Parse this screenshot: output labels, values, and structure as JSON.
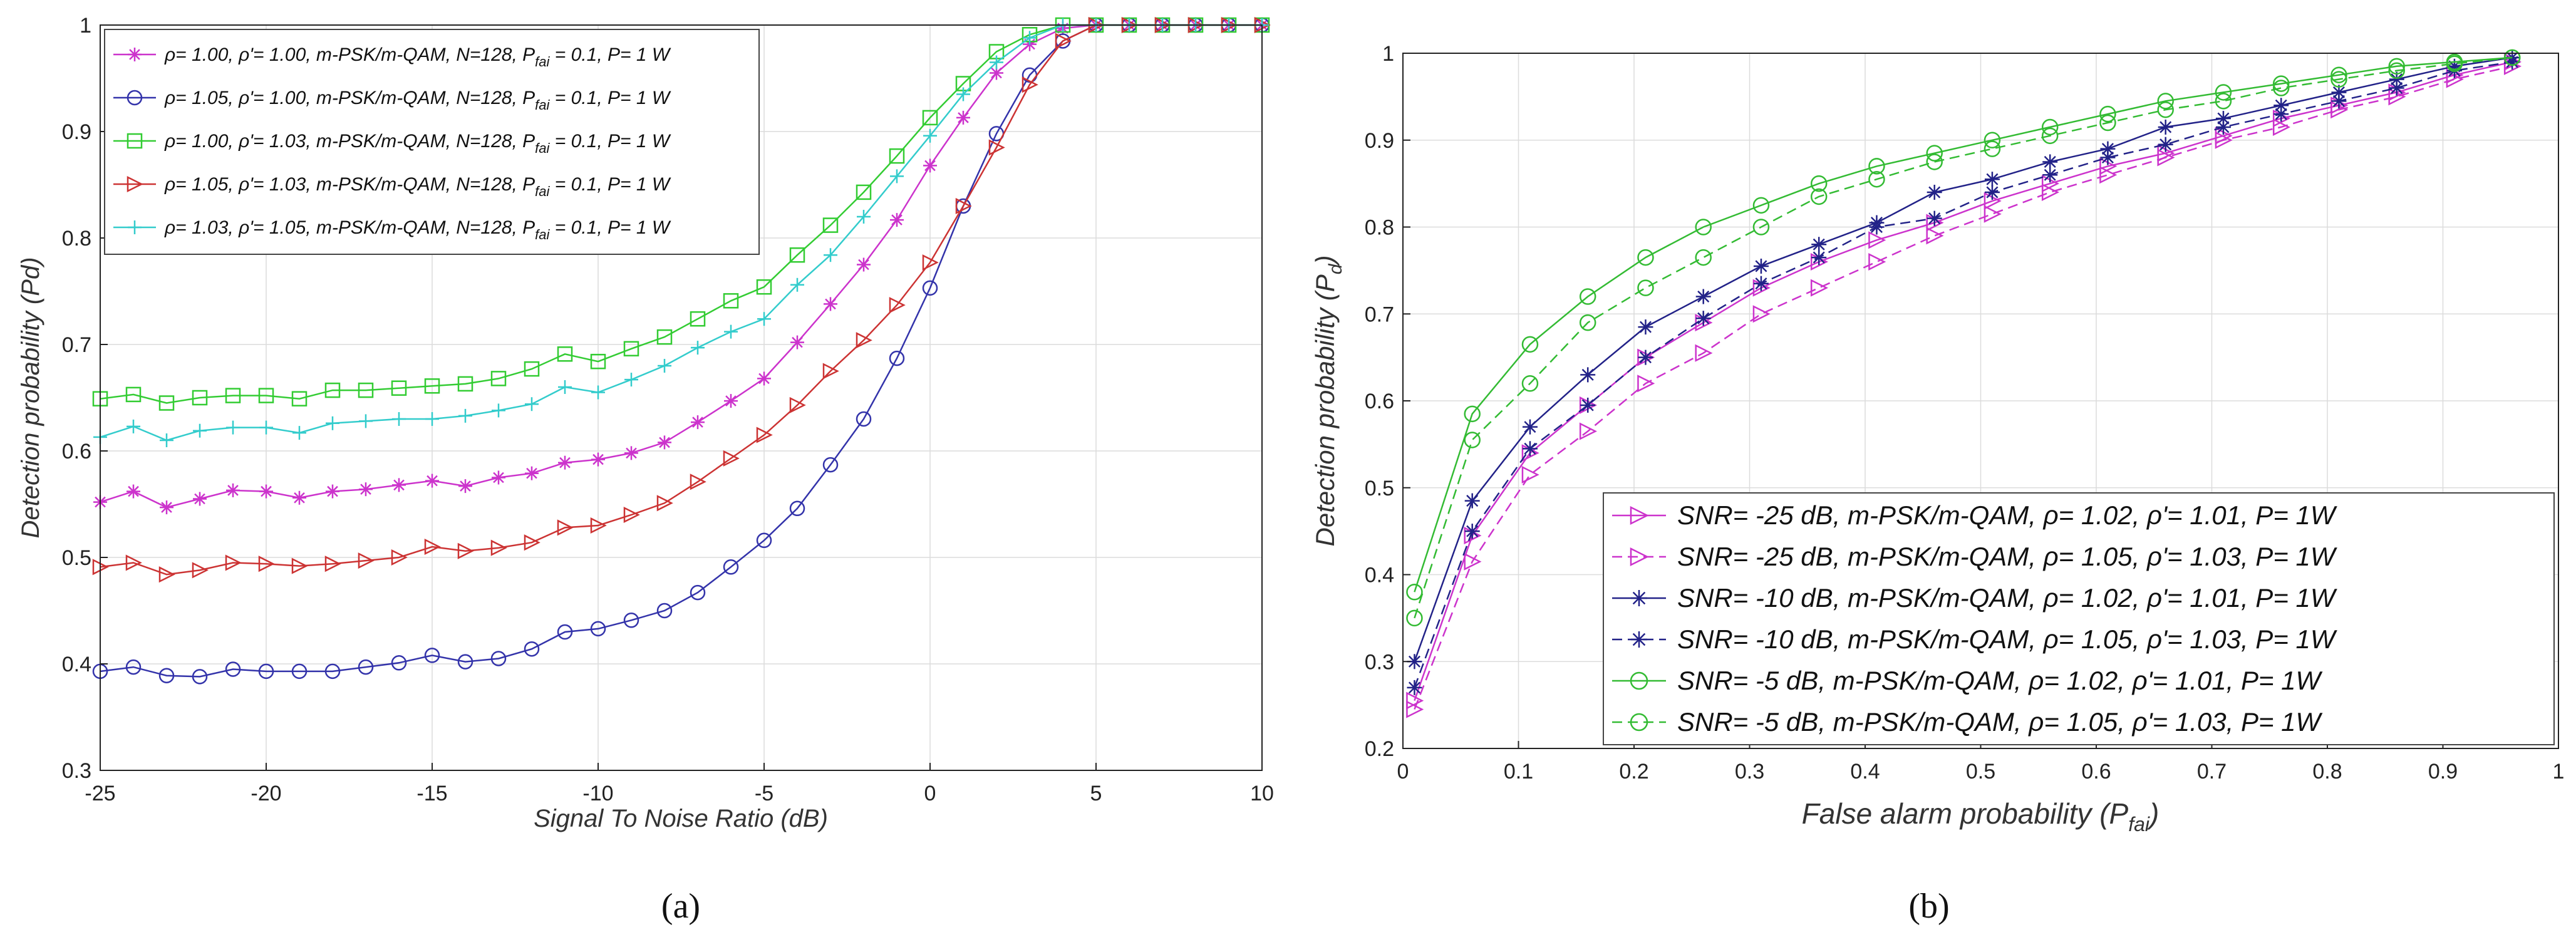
{
  "chart_data": [
    {
      "id": "a",
      "type": "line",
      "caption": "(a)",
      "title": "",
      "xlabel": "Signal To Noise Ratio (dB)",
      "ylabel": "Detection probability (Pd)",
      "xlim": [
        -25,
        10
      ],
      "ylim": [
        0.3,
        1
      ],
      "xticks": [
        "-25",
        "-20",
        "-15",
        "-10",
        "-5",
        "0",
        "5",
        "10"
      ],
      "yticks": [
        "0.3",
        "0.4",
        "0.5",
        "0.6",
        "0.7",
        "0.8",
        "0.9",
        "1"
      ],
      "grid": true,
      "legend_position": "top-left",
      "x": [
        -25,
        -24,
        -23,
        -22,
        -21,
        -20,
        -19,
        -18,
        -17,
        -16,
        -15,
        -14,
        -13,
        -12,
        -11,
        -10,
        -9,
        -8,
        -7,
        -6,
        -5,
        -4,
        -3,
        -2,
        -1,
        0,
        1,
        2,
        3,
        4,
        5,
        6,
        7,
        8,
        9,
        10
      ],
      "series": [
        {
          "name": "ρ= 1.00, ρ'= 1.00, m-PSK/m-QAM, N=128, P_fai = 0.1, P= 1 W",
          "legend": {
            "pre": "ρ= 1.00, ρ'= 1.00, m-PSK/m-QAM, N=128, P",
            "sub": "fai",
            "post": " = 0.1, P= 1 W"
          },
          "color": "#cc33cc",
          "marker": "asterisk",
          "values": [
            0.552,
            0.562,
            0.547,
            0.555,
            0.563,
            0.562,
            0.556,
            0.562,
            0.564,
            0.568,
            0.572,
            0.567,
            0.575,
            0.579,
            0.589,
            0.592,
            0.598,
            0.608,
            0.627,
            0.647,
            0.668,
            0.702,
            0.738,
            0.775,
            0.817,
            0.868,
            0.913,
            0.955,
            0.982,
            0.997,
            1.0,
            1.0,
            1.0,
            1.0,
            1.0,
            1.0
          ]
        },
        {
          "name": "ρ= 1.05, ρ'= 1.00, m-PSK/m-QAM, N=128, P_fai = 0.1, P= 1 W",
          "legend": {
            "pre": "ρ= 1.05, ρ'= 1.00, m-PSK/m-QAM, N=128, P",
            "sub": "fai",
            "post": " = 0.1, P= 1 W"
          },
          "color": "#3333aa",
          "marker": "circle",
          "values": [
            0.393,
            0.397,
            0.389,
            0.388,
            0.395,
            0.393,
            0.393,
            0.393,
            0.397,
            0.401,
            0.408,
            0.402,
            0.405,
            0.414,
            0.43,
            0.433,
            0.441,
            0.45,
            0.467,
            0.491,
            0.516,
            0.546,
            0.587,
            0.63,
            0.687,
            0.753,
            0.83,
            0.898,
            0.953,
            0.985,
            1.0,
            1.0,
            1.0,
            1.0,
            1.0,
            1.0
          ]
        },
        {
          "name": "ρ= 1.00, ρ'= 1.03, m-PSK/m-QAM, N=128, P_fai = 0.1, P= 1 W",
          "legend": {
            "pre": "ρ= 1.00, ρ'= 1.03, m-PSK/m-QAM, N=128, P",
            "sub": "fai",
            "post": " = 0.1, P= 1 W"
          },
          "color": "#33cc33",
          "marker": "square",
          "values": [
            0.649,
            0.653,
            0.645,
            0.65,
            0.652,
            0.652,
            0.649,
            0.657,
            0.657,
            0.659,
            0.661,
            0.663,
            0.668,
            0.677,
            0.691,
            0.684,
            0.696,
            0.707,
            0.724,
            0.741,
            0.754,
            0.784,
            0.812,
            0.843,
            0.877,
            0.913,
            0.945,
            0.975,
            0.991,
            1.0,
            1.0,
            1.0,
            1.0,
            1.0,
            1.0,
            1.0
          ]
        },
        {
          "name": "ρ= 1.05, ρ'= 1.03, m-PSK/m-QAM, N=128, P_fai = 0.1, P= 1 W",
          "legend": {
            "pre": "ρ= 1.05, ρ'= 1.03, m-PSK/m-QAM, N=128, P",
            "sub": "fai",
            "post": " = 0.1, P= 1 W"
          },
          "color": "#cc3333",
          "marker": "triangle-right",
          "values": [
            0.491,
            0.495,
            0.484,
            0.488,
            0.495,
            0.494,
            0.492,
            0.494,
            0.497,
            0.5,
            0.51,
            0.506,
            0.509,
            0.514,
            0.528,
            0.53,
            0.54,
            0.551,
            0.571,
            0.593,
            0.615,
            0.643,
            0.675,
            0.704,
            0.737,
            0.777,
            0.83,
            0.885,
            0.944,
            0.985,
            1.0,
            1.0,
            1.0,
            1.0,
            1.0,
            1.0
          ]
        },
        {
          "name": "ρ= 1.03, ρ'= 1.05, m-PSK/m-QAM, N=128, P_fai = 0.1, P= 1 W",
          "legend": {
            "pre": "ρ= 1.03, ρ'= 1.05, m-PSK/m-QAM, N=128, P",
            "sub": "fai",
            "post": " = 0.1, P= 1 W"
          },
          "color": "#33cccc",
          "marker": "plus",
          "values": [
            0.613,
            0.623,
            0.61,
            0.619,
            0.622,
            0.622,
            0.617,
            0.626,
            0.628,
            0.63,
            0.63,
            0.633,
            0.638,
            0.644,
            0.66,
            0.655,
            0.667,
            0.68,
            0.697,
            0.712,
            0.724,
            0.756,
            0.784,
            0.82,
            0.858,
            0.896,
            0.935,
            0.965,
            0.988,
            1.0,
            1.0,
            1.0,
            1.0,
            1.0,
            1.0,
            1.0
          ]
        }
      ]
    },
    {
      "id": "b",
      "type": "line",
      "caption": "(b)",
      "title": "",
      "xlabel": "False alarm probability (P_fai)",
      "xlabel_parts": {
        "pre": "False alarm probability (P",
        "sub": "fai",
        "post": ")"
      },
      "ylabel": "Detection probability (P_d)",
      "ylabel_parts": {
        "pre": "Detection probability (P",
        "sub": "d",
        "post": ")"
      },
      "xlim": [
        0,
        1
      ],
      "ylim": [
        0.2,
        1
      ],
      "xticks": [
        "0",
        "0.1",
        "0.2",
        "0.3",
        "0.4",
        "0.5",
        "0.6",
        "0.7",
        "0.8",
        "0.9",
        "1"
      ],
      "yticks": [
        "0.2",
        "0.3",
        "0.4",
        "0.5",
        "0.6",
        "0.7",
        "0.8",
        "0.9",
        "1"
      ],
      "grid": true,
      "legend_position": "bottom-right",
      "x": [
        0.01,
        0.06,
        0.11,
        0.16,
        0.21,
        0.26,
        0.31,
        0.36,
        0.41,
        0.46,
        0.51,
        0.56,
        0.61,
        0.66,
        0.71,
        0.76,
        0.81,
        0.86,
        0.91,
        0.96
      ],
      "series": [
        {
          "name": "SNR= -25 dB, m-PSK/m-QAM, ρ= 1.02, ρ'= 1.01, P= 1W",
          "color": "#cc33cc",
          "marker": "triangle-right",
          "dash": "solid",
          "values": [
            0.255,
            0.445,
            0.54,
            0.595,
            0.65,
            0.69,
            0.73,
            0.76,
            0.785,
            0.805,
            0.83,
            0.85,
            0.87,
            0.885,
            0.905,
            0.925,
            0.94,
            0.955,
            0.975,
            0.99
          ]
        },
        {
          "name": "SNR= -25 dB, m-PSK/m-QAM, ρ= 1.05, ρ'= 1.03, P= 1W",
          "color": "#cc33cc",
          "marker": "triangle-right",
          "dash": "dashed",
          "values": [
            0.245,
            0.415,
            0.515,
            0.565,
            0.62,
            0.655,
            0.7,
            0.73,
            0.76,
            0.79,
            0.815,
            0.84,
            0.86,
            0.88,
            0.9,
            0.915,
            0.935,
            0.95,
            0.97,
            0.985
          ]
        },
        {
          "name": "SNR= -10 dB, m-PSK/m-QAM, ρ= 1.02, ρ'= 1.01, P= 1W",
          "color": "#222288",
          "marker": "asterisk",
          "dash": "solid",
          "values": [
            0.3,
            0.485,
            0.57,
            0.63,
            0.685,
            0.72,
            0.755,
            0.78,
            0.805,
            0.84,
            0.855,
            0.875,
            0.89,
            0.915,
            0.925,
            0.94,
            0.955,
            0.97,
            0.985,
            0.995
          ]
        },
        {
          "name": "SNR= -10 dB, m-PSK/m-QAM, ρ= 1.05, ρ'= 1.03, P= 1W",
          "color": "#222288",
          "marker": "asterisk",
          "dash": "dashed",
          "values": [
            0.27,
            0.45,
            0.545,
            0.595,
            0.65,
            0.695,
            0.735,
            0.765,
            0.8,
            0.81,
            0.84,
            0.86,
            0.88,
            0.895,
            0.915,
            0.93,
            0.945,
            0.96,
            0.98,
            0.99
          ]
        },
        {
          "name": "SNR= -5 dB, m-PSK/m-QAM, ρ= 1.02, ρ'= 1.01, P= 1W",
          "color": "#33bb33",
          "marker": "circle",
          "dash": "solid",
          "values": [
            0.38,
            0.585,
            0.665,
            0.72,
            0.765,
            0.8,
            0.825,
            0.85,
            0.87,
            0.885,
            0.9,
            0.915,
            0.93,
            0.945,
            0.955,
            0.965,
            0.975,
            0.985,
            0.99,
            0.995
          ]
        },
        {
          "name": "SNR= -5 dB, m-PSK/m-QAM, ρ= 1.05, ρ'= 1.03, P= 1W",
          "color": "#33bb33",
          "marker": "circle",
          "dash": "dashed",
          "values": [
            0.35,
            0.555,
            0.62,
            0.69,
            0.73,
            0.765,
            0.8,
            0.835,
            0.855,
            0.875,
            0.89,
            0.905,
            0.92,
            0.935,
            0.945,
            0.96,
            0.97,
            0.98,
            0.988,
            0.995
          ]
        }
      ]
    }
  ]
}
